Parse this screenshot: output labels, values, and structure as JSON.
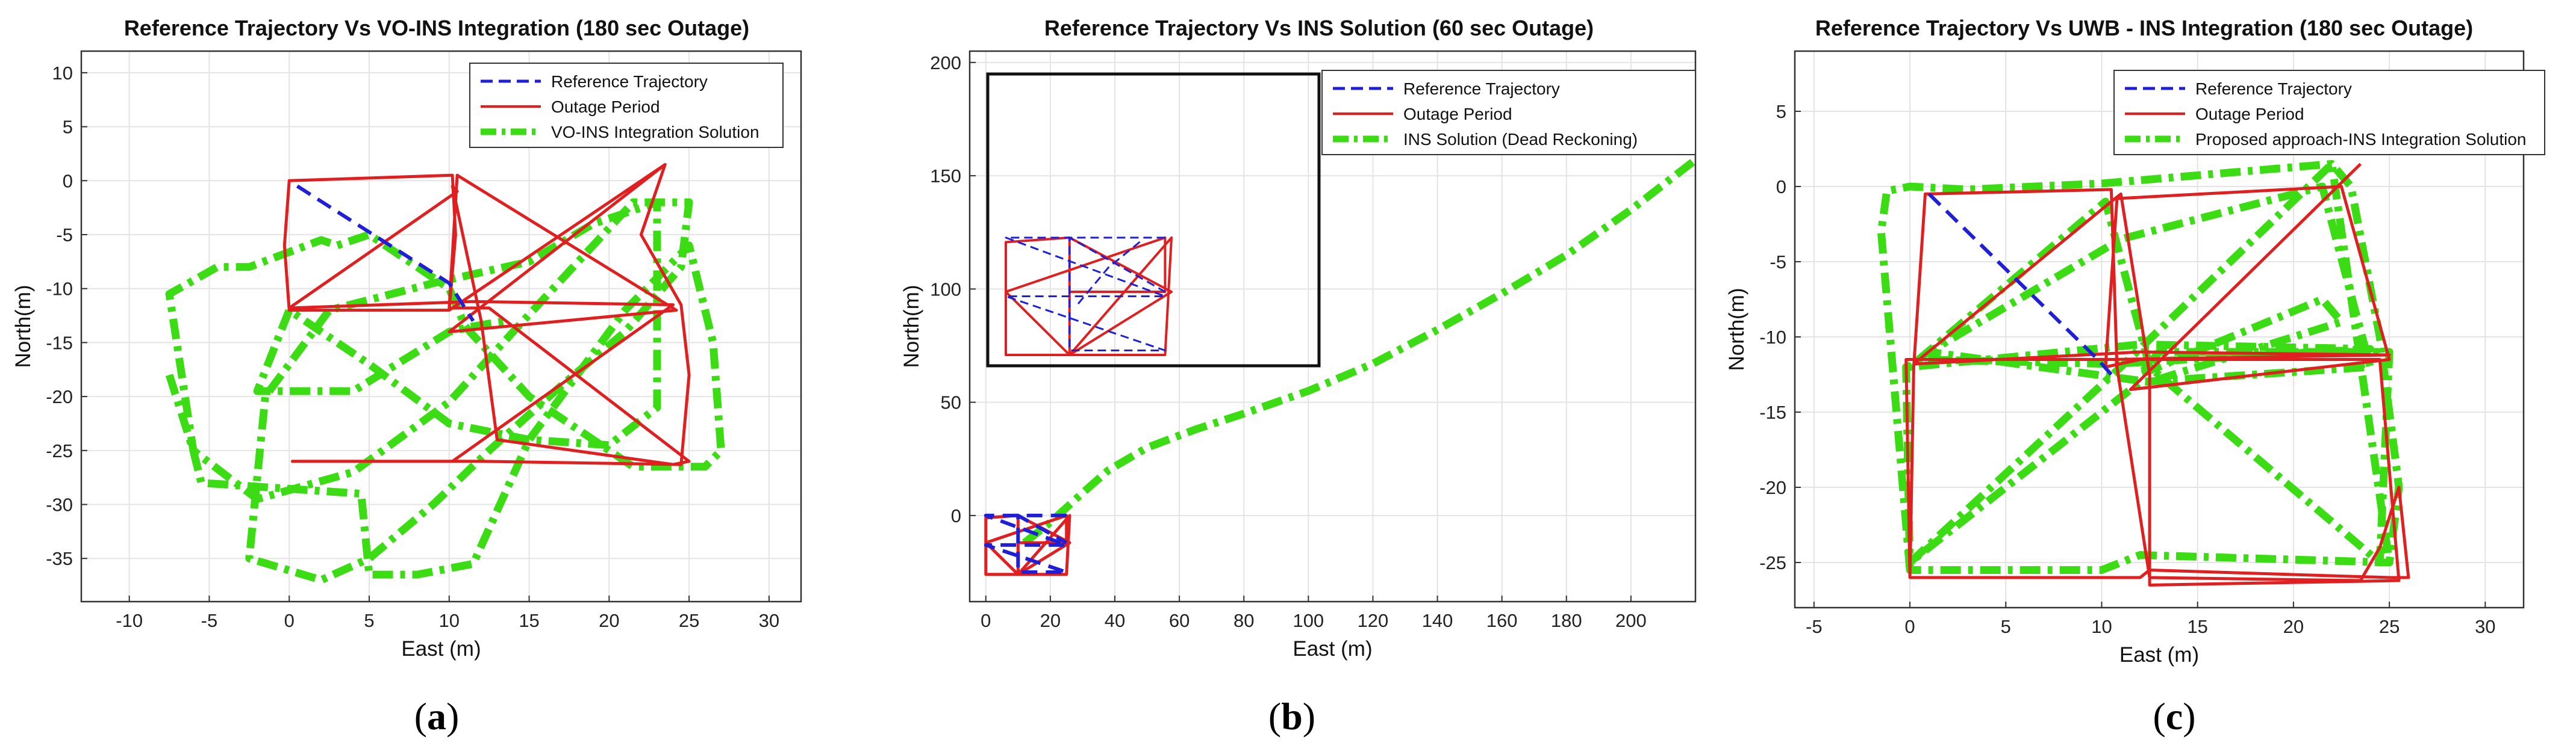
{
  "chart_data": [
    {
      "type": "line",
      "caption": "a",
      "title": "Reference Trajectory Vs VO-INS Integration (180 sec Outage)",
      "xlabel": "East (m)",
      "ylabel": "North(m)",
      "xlim": [
        -13,
        32
      ],
      "ylim": [
        -39,
        12
      ],
      "xticks": [
        -10,
        -5,
        0,
        5,
        10,
        15,
        20,
        25,
        30
      ],
      "yticks": [
        10,
        5,
        0,
        -5,
        -10,
        -15,
        -20,
        -25,
        -30,
        -35
      ],
      "grid": true,
      "legend_position": "top-right",
      "series": [
        {
          "name": "Reference Trajectory",
          "color": "#1f1fd8",
          "style": "dashed",
          "x": [
            0.5,
            10.0,
            11.5
          ],
          "y": [
            -0.5,
            -9.5,
            -13.0
          ]
        },
        {
          "name": "Outage Period",
          "color": "#e02020",
          "style": "solid",
          "x": [
            10.0,
            0.0,
            -0.3,
            0.0,
            10.2,
            10.4,
            10.0,
            23.5,
            22.0,
            24.5,
            25.0,
            24.5,
            12.0,
            10.0,
            0.2,
            10.2,
            24.0,
            11.5,
            0.0,
            10.5,
            10.2,
            12.0,
            13.0,
            24.0,
            25.0,
            12.5,
            10.0,
            10.5,
            22.0,
            24.2,
            10.0,
            23.5
          ],
          "y": [
            -12.0,
            -12.0,
            -6.0,
            0.0,
            0.5,
            -5.0,
            -12.0,
            1.5,
            -5.0,
            -11.5,
            -18.0,
            -26.3,
            -26.0,
            -26.0,
            -26.0,
            -26.0,
            -11.5,
            -11.2,
            -11.8,
            -1.0,
            -0.5,
            -13.0,
            -24.0,
            -26.3,
            -26.0,
            -11.8,
            -11.8,
            0.5,
            -10.0,
            -12.0,
            -14.0,
            1.5
          ]
        },
        {
          "name": "VO-INS Integration Solution",
          "color": "#3cdc14",
          "style": "dashdot",
          "x": [
            -7.5,
            -6.0,
            -5.5,
            4.5,
            5.0,
            8.0,
            11.5,
            15.0,
            21.0,
            25.0,
            26.5,
            27.0,
            26.0,
            21.5,
            15.0,
            11.0,
            10.0,
            5.0,
            3.0,
            2.0,
            -2.5,
            -4.5,
            -7.5,
            -6.0,
            -2.0,
            4.0,
            10.0,
            14.0,
            21.5,
            25.0,
            24.5,
            21.0,
            17.0,
            12.5,
            9.0,
            5.0,
            2.0,
            -2.5,
            -1.5,
            2.5,
            9.0,
            15.0,
            19.0,
            23.0,
            23.0,
            20.0,
            15.0,
            10.0,
            5.0,
            0.0,
            -2.0,
            4.0,
            10.0,
            11.5,
            13.5
          ],
          "y": [
            -18.0,
            -25.0,
            -28.0,
            -29.0,
            -36.5,
            -36.5,
            -35.5,
            -24.0,
            -12.0,
            -6.0,
            -15.0,
            -25.0,
            -26.5,
            -26.5,
            -20.0,
            -13.5,
            -10.0,
            -5.0,
            -6.0,
            -5.5,
            -8.0,
            -8.0,
            -10.5,
            -25.0,
            -29.5,
            -27.0,
            -20.5,
            -14.0,
            -2.0,
            -2.0,
            -8.0,
            -14.0,
            -19.0,
            -25.0,
            -30.0,
            -35.0,
            -37.0,
            -35.0,
            -20.0,
            -12.0,
            -9.5,
            -7.5,
            -4.0,
            -2.0,
            -21.0,
            -24.5,
            -24.0,
            -22.5,
            -17.0,
            -12.0,
            -19.5,
            -19.5,
            -14.0,
            -13.5,
            -13.0
          ]
        }
      ]
    },
    {
      "type": "line",
      "caption": "b",
      "title": "Reference Trajectory Vs INS Solution (60 sec Outage)",
      "xlabel": "East (m)",
      "ylabel": "North(m)",
      "xlim": [
        -5,
        220
      ],
      "ylim": [
        -38,
        205
      ],
      "xticks": [
        0,
        20,
        40,
        60,
        80,
        100,
        120,
        140,
        160,
        180,
        200
      ],
      "yticks": [
        200,
        150,
        100,
        50,
        0
      ],
      "grid": true,
      "legend_position": "top-right",
      "inset": true,
      "series": [
        {
          "name": "Reference Trajectory",
          "color": "#1f1fd8",
          "style": "dashed",
          "x": [
            25.0,
            0.0,
            25.0,
            0.0,
            25.0,
            10.0,
            10.0,
            25.0
          ],
          "y": [
            0.0,
            0.0,
            -13.0,
            -13.0,
            -25.0,
            -25.0,
            0.0,
            -12.0
          ]
        },
        {
          "name": "Outage Period",
          "color": "#e02020",
          "style": "solid",
          "x": [
            0.0,
            0.0,
            10.0,
            10.0,
            0.0,
            25.0,
            26.0,
            10.0,
            10.0,
            25.0,
            25.0,
            0.0,
            10.0,
            26.0,
            10.0
          ],
          "y": [
            -26.0,
            -1.0,
            0.0,
            -26.0,
            -26.0,
            -26.0,
            0.0,
            -26.0,
            -12.0,
            -12.0,
            0.0,
            -12.0,
            -26.0,
            -12.0,
            0.0
          ]
        },
        {
          "name": "INS Solution (Dead Reckoning)",
          "color": "#3cdc14",
          "style": "dashdot",
          "x": [
            12.0,
            20.0,
            30.0,
            38.0,
            50.0,
            65.0,
            80.0,
            100.0,
            120.0,
            140.0,
            160.0,
            180.0,
            200.0,
            220.0
          ],
          "y": [
            -12.0,
            -3.0,
            10.0,
            20.0,
            30.0,
            38.0,
            45.0,
            55.0,
            67.0,
            82.0,
            98.0,
            115.0,
            135.0,
            157.0
          ]
        }
      ]
    },
    {
      "type": "line",
      "caption": "c",
      "title": "Reference Trajectory Vs UWB - INS Integration (180 sec Outage)",
      "xlabel": "East (m)",
      "ylabel": "North(m)",
      "xlim": [
        -6,
        32
      ],
      "ylim": [
        -28,
        9
      ],
      "xticks": [
        -5,
        0,
        5,
        10,
        15,
        20,
        25,
        30
      ],
      "yticks": [
        5,
        0,
        -5,
        -10,
        -15,
        -20,
        -25
      ],
      "grid": true,
      "legend_position": "top-right",
      "series": [
        {
          "name": "Reference Trajectory",
          "color": "#1f1fd8",
          "style": "dashed",
          "x": [
            1.0,
            9.8,
            10.5
          ],
          "y": [
            -0.5,
            -11.5,
            -12.5
          ]
        },
        {
          "name": "Outage Period",
          "color": "#e02020",
          "style": "solid",
          "x": [
            0.0,
            0.2,
            0.8,
            10.5,
            10.8,
            12.5,
            23.5,
            24.5,
            25.5,
            26.0,
            25.0,
            12.5,
            12.0,
            0.0,
            -0.2,
            10.5,
            25.0,
            12.0,
            0.2,
            10.5,
            11.0,
            12.5,
            12.5,
            25.5,
            24.5,
            12.0,
            10.2,
            10.8,
            22.5,
            25.0,
            11.5,
            23.5
          ],
          "y": [
            -26.0,
            -12.0,
            -0.5,
            -0.2,
            -12.0,
            -26.0,
            -26.2,
            -24.0,
            -20.0,
            -26.0,
            -26.0,
            -25.5,
            -26.0,
            -26.0,
            -11.5,
            -11.5,
            -11.2,
            -11.0,
            -11.8,
            -1.0,
            -0.5,
            -12.5,
            -26.5,
            -26.2,
            -11.5,
            -11.5,
            -12.0,
            -0.8,
            0.0,
            -11.5,
            -13.5,
            1.5
          ]
        },
        {
          "name": "Proposed approach-INS Integration Solution",
          "color": "#3cdc14",
          "style": "dashdot",
          "x": [
            0.0,
            -0.5,
            -1.5,
            -1.2,
            0.0,
            3.0,
            10.0,
            22.0,
            23.0,
            24.5,
            25.5,
            25.0,
            12.0,
            10.0,
            0.0,
            -0.2,
            0.5,
            10.5,
            24.0,
            12.0,
            0.0,
            10.2,
            12.5,
            24.5,
            25.0,
            13.0,
            12.0,
            21.5,
            22.5,
            12.5,
            1.0,
            11.0,
            21.5,
            24.0,
            12.0,
            0.0,
            11.0,
            22.0,
            25.0
          ],
          "y": [
            -25.5,
            -18.0,
            -3.0,
            -0.3,
            0.0,
            -0.2,
            0.2,
            1.5,
            0.0,
            -10.0,
            -20.0,
            -25.0,
            -24.5,
            -25.5,
            -25.5,
            -12.0,
            -11.5,
            -11.8,
            -10.8,
            -10.5,
            -12.0,
            -1.0,
            -12.0,
            -25.0,
            -11.0,
            -11.0,
            -12.5,
            -7.5,
            -9.0,
            -13.0,
            -11.0,
            -3.5,
            0.0,
            -12.0,
            -13.0,
            -25.0,
            -12.0,
            1.5,
            -25.0
          ]
        }
      ]
    }
  ]
}
